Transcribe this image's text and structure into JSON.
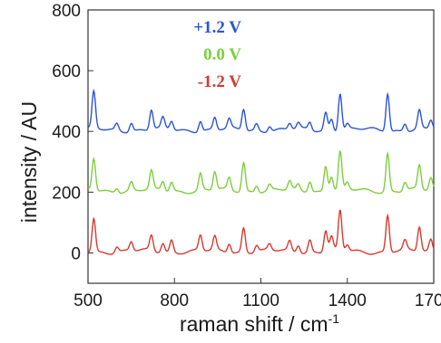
{
  "chart_data": {
    "type": "line",
    "xlabel": "raman shift / cm",
    "xlabel_superscript": "-1",
    "ylabel": "intensity / AU",
    "xlim": [
      500,
      1700
    ],
    "ylim": [
      -100,
      800
    ],
    "x_ticks": [
      "500",
      "800",
      "1100",
      "1400",
      "1700"
    ],
    "y_ticks": [
      "0",
      "200",
      "400",
      "600",
      "800"
    ],
    "grid": false,
    "legend_placement": "top-center",
    "peaks": [
      520,
      600,
      650,
      720,
      760,
      790,
      890,
      940,
      990,
      1040,
      1085,
      1130,
      1200,
      1230,
      1270,
      1325,
      1345,
      1375,
      1400,
      1540,
      1600,
      1650,
      1690
    ],
    "series": [
      {
        "name": "+1.2 V",
        "color": "#2b55d6",
        "baseline": 405,
        "peak_heights": [
          120,
          22,
          28,
          65,
          35,
          28,
          35,
          40,
          30,
          70,
          22,
          18,
          20,
          18,
          25,
          60,
          40,
          125,
          18,
          125,
          25,
          60,
          30
        ]
      },
      {
        "name": "0.0 V",
        "color": "#7ccf3c",
        "baseline": 205,
        "peak_heights": [
          105,
          15,
          28,
          60,
          30,
          30,
          55,
          60,
          40,
          95,
          22,
          18,
          28,
          18,
          35,
          85,
          50,
          125,
          22,
          125,
          28,
          80,
          40
        ]
      },
      {
        "name": "-1.2 V",
        "color": "#d63a30",
        "baseline": 5,
        "peak_heights": [
          110,
          18,
          30,
          50,
          30,
          40,
          50,
          45,
          30,
          80,
          22,
          20,
          32,
          25,
          40,
          70,
          45,
          130,
          20,
          120,
          30,
          80,
          40
        ]
      }
    ]
  }
}
